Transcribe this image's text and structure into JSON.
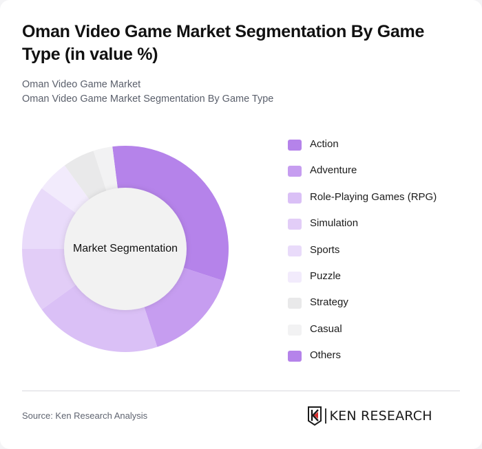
{
  "header": {
    "title": "Oman Video Game Market Segmentation By Game Type (in value %)",
    "subtitle_1": "Oman Video Game Market",
    "subtitle_2": "Oman Video Game Market Segmentation By Game Type"
  },
  "center_label": "Market Segmentation",
  "footer": {
    "source": "Source: Ken Research Analysis",
    "logo_text": "KEN RESEARCH"
  },
  "colors": {
    "Action": "#b583ea",
    "Adventure": "#c69df0",
    "Role-Playing Games (RPG)": "#dac0f6",
    "Simulation": "#e2cdf7",
    "Sports": "#e9dbfa",
    "Puzzle": "#f2ebfc",
    "Strategy": "#e9e9ea",
    "Casual": "#f2f2f3",
    "Others": "#b583ea",
    "center": "#f2f2f2"
  },
  "legend": [
    {
      "label": "Action",
      "color": "#b583ea"
    },
    {
      "label": "Adventure",
      "color": "#c69df0"
    },
    {
      "label": "Role-Playing Games (RPG)",
      "color": "#dac0f6"
    },
    {
      "label": "Simulation",
      "color": "#e2cdf7"
    },
    {
      "label": "Sports",
      "color": "#e9dbfa"
    },
    {
      "label": "Puzzle",
      "color": "#f2ebfc"
    },
    {
      "label": "Strategy",
      "color": "#e9e9ea"
    },
    {
      "label": "Casual",
      "color": "#f2f2f3"
    },
    {
      "label": "Others",
      "color": "#b583ea"
    }
  ],
  "chart_data": {
    "type": "pie",
    "variant": "donut",
    "title": "Oman Video Game Market Segmentation By Game Type (in value %)",
    "center_text": "Market Segmentation",
    "categories": [
      "Action",
      "Adventure",
      "Role-Playing Games (RPG)",
      "Simulation",
      "Sports",
      "Puzzle",
      "Strategy",
      "Casual",
      "Others"
    ],
    "values": [
      32,
      15,
      20,
      10,
      10,
      5,
      5,
      3,
      0
    ],
    "unit": "%",
    "start_angle_deg": -7.2,
    "legend_position": "right"
  }
}
